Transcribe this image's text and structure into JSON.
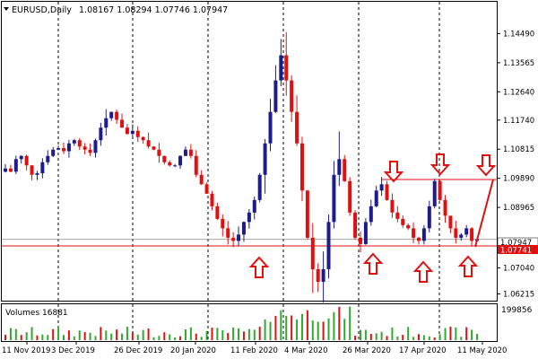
{
  "header": {
    "symbol_label": "EURUSD,Daily",
    "ohlc": "1.08167 1.08294 1.07746 1.07947"
  },
  "volume_panel": {
    "label": "Volumes 16881",
    "max_label": "199856"
  },
  "price_axis": {
    "ticks": [
      "1.14490",
      "1.13565",
      "1.12640",
      "1.11740",
      "1.10815",
      "1.09890",
      "1.08965",
      "1.07040",
      "1.06215"
    ],
    "current_price_label": "1.07947",
    "support_price_label": "1.07741"
  },
  "date_axis": {
    "ticks": [
      "11 Nov 2019",
      "3 Dec 2019",
      "26 Dec 2019",
      "20 Jan 2020",
      "11 Feb 2020",
      "4 Mar 2020",
      "26 Mar 2020",
      "17 Apr 2020",
      "11 May 2020"
    ]
  },
  "colors": {
    "bull": "#1c1c8c",
    "bear": "#e01010",
    "volume": "#2faa2f",
    "volume_alt": "#e01010",
    "annotation": "#e01010",
    "grid": "#000000"
  },
  "chart_data": {
    "type": "candlestick",
    "ylim": [
      1.06,
      1.155
    ],
    "levels": {
      "support": 1.07741,
      "resistance": 1.0985,
      "current": 1.07947
    },
    "x": [
      "11 Nov 2019",
      "3 Dec 2019",
      "26 Dec 2019",
      "20 Jan 2020",
      "11 Feb 2020",
      "4 Mar 2020",
      "26 Mar 2020",
      "17 Apr 2020",
      "11 May 2020"
    ],
    "close_path": [
      1.102,
      1.101,
      1.105,
      1.106,
      1.103,
      1.1,
      1.1005,
      1.104,
      1.106,
      1.108,
      1.1085,
      1.1075,
      1.11,
      1.111,
      1.109,
      1.108,
      1.107,
      1.111,
      1.115,
      1.118,
      1.12,
      1.1175,
      1.115,
      1.113,
      1.114,
      1.112,
      1.111,
      1.109,
      1.108,
      1.106,
      1.104,
      1.103,
      1.103,
      1.106,
      1.108,
      1.106,
      1.1,
      1.097,
      1.094,
      1.09,
      1.086,
      1.083,
      1.08,
      1.079,
      1.081,
      1.085,
      1.088,
      1.092,
      1.1,
      1.11,
      1.12,
      1.13,
      1.138,
      1.13,
      1.12,
      1.11,
      1.095,
      1.08,
      1.07,
      1.066,
      1.07,
      1.085,
      1.1,
      1.105,
      1.098,
      1.088,
      1.08,
      1.078,
      1.085,
      1.09,
      1.095,
      1.097,
      1.092,
      1.088,
      1.086,
      1.084,
      1.083,
      1.08,
      1.079,
      1.083,
      1.09,
      1.098,
      1.092,
      1.087,
      1.083,
      1.08,
      1.081,
      1.083,
      1.079,
      1.0795
    ],
    "annotations": {
      "down_arrows_at": [
        "26 Mar 2020",
        "17 Apr 2020"
      ],
      "up_arrows_at": [
        "11 Feb 2020",
        "26 Mar 2020",
        "17 Apr 2020",
        "11 May 2020"
      ]
    }
  }
}
